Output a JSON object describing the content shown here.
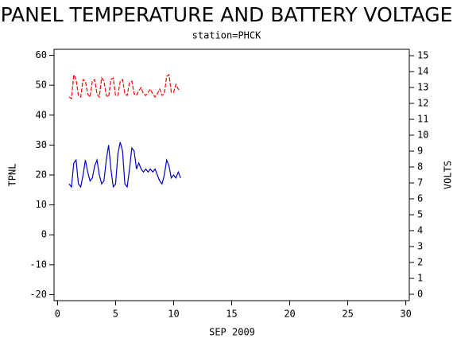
{
  "chart_data": {
    "type": "line",
    "title": "PANEL TEMPERATURE AND BATTERY VOLTAGE",
    "subtitle": "station=PHCK",
    "x_label": "SEP 2009",
    "y_label": "TPNL",
    "y2_label": "VOLTS",
    "xlim": [
      -0.3,
      30.3
    ],
    "xticks": [
      0,
      5,
      10,
      15,
      20,
      25,
      30
    ],
    "ylim": [
      -22,
      62
    ],
    "yticks": [
      -20,
      -10,
      0,
      10,
      20,
      30,
      40,
      50,
      60
    ],
    "y2lim": [
      -0.4,
      15.4
    ],
    "y2ticks": [
      0,
      1,
      2,
      3,
      4,
      5,
      6,
      7,
      8,
      9,
      10,
      11,
      12,
      13,
      14,
      15
    ],
    "x": [
      1.0,
      1.2,
      1.4,
      1.6,
      1.8,
      2.0,
      2.2,
      2.4,
      2.6,
      2.8,
      3.0,
      3.2,
      3.4,
      3.6,
      3.8,
      4.0,
      4.2,
      4.4,
      4.6,
      4.8,
      5.0,
      5.2,
      5.4,
      5.6,
      5.8,
      6.0,
      6.2,
      6.4,
      6.6,
      6.8,
      7.0,
      7.2,
      7.4,
      7.6,
      7.8,
      8.0,
      8.2,
      8.4,
      8.6,
      8.8,
      9.0,
      9.2,
      9.4,
      9.6,
      9.8,
      10.0,
      10.2,
      10.4,
      10.6
    ],
    "series": [
      {
        "name": "TPNL",
        "color": "#0000cc",
        "axis": "y",
        "line_style": "solid",
        "values": [
          17,
          16,
          24,
          25,
          17,
          16,
          20,
          25,
          21,
          18,
          19,
          23,
          25,
          20,
          17,
          18,
          25,
          30,
          22,
          16,
          17,
          27,
          31,
          28,
          17,
          16,
          22,
          29,
          28,
          22,
          24,
          22,
          21,
          22,
          21,
          22,
          21,
          22,
          20,
          18,
          17,
          20,
          25,
          23,
          19,
          20,
          19,
          21,
          19
        ]
      },
      {
        "name": "VOLTS",
        "color": "#ff0000",
        "axis": "y2",
        "line_style": "dashed",
        "values": [
          12.4,
          12.3,
          13.8,
          13.5,
          12.5,
          12.4,
          13.5,
          13.4,
          12.6,
          12.4,
          13.4,
          13.5,
          12.6,
          12.4,
          13.6,
          13.4,
          12.5,
          12.4,
          13.5,
          13.6,
          12.5,
          12.5,
          13.4,
          13.5,
          12.6,
          12.5,
          13.3,
          13.4,
          12.6,
          12.5,
          12.8,
          13.0,
          12.6,
          12.5,
          12.7,
          12.9,
          12.6,
          12.4,
          12.6,
          12.9,
          12.5,
          12.6,
          13.7,
          13.8,
          12.7,
          12.7,
          13.2,
          12.9,
          12.8
        ]
      }
    ]
  }
}
